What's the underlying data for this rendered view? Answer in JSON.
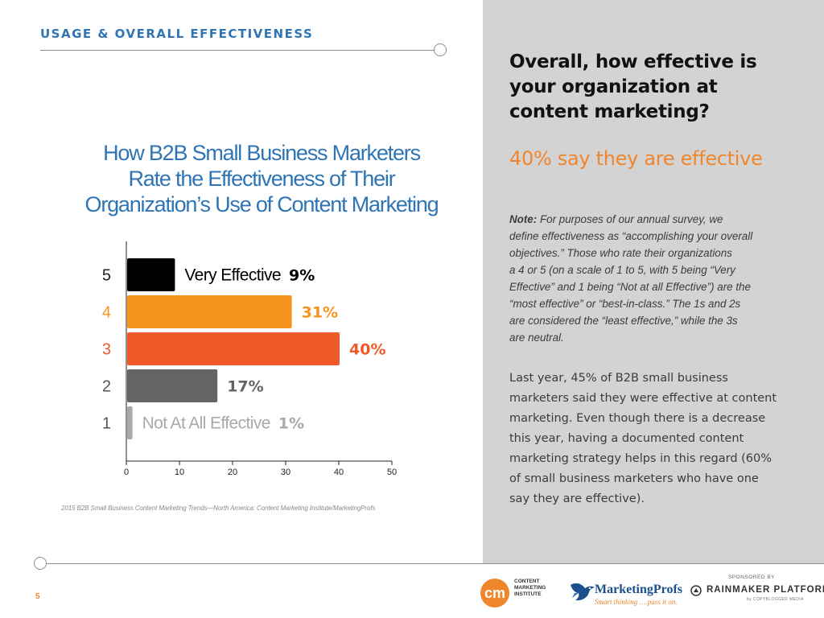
{
  "header": {
    "section_label": "USAGE & OVERALL EFFECTIVENESS"
  },
  "chart_title_lines": [
    "How B2B Small Business Marketers",
    "Rate the Effectiveness of Their",
    "Organization’s Use of Content Marketing"
  ],
  "chart_data": {
    "type": "bar",
    "orientation": "horizontal",
    "title": "How B2B Small Business Marketers Rate the Effectiveness of Their Organization’s Use of Content Marketing",
    "categories": [
      "5",
      "4",
      "3",
      "2",
      "1"
    ],
    "category_labels": [
      "Very Effective",
      "",
      "",
      "",
      "Not At All Effective"
    ],
    "values": [
      9,
      31,
      40,
      17,
      1
    ],
    "value_labels": [
      "9%",
      "31%",
      "40%",
      "17%",
      "1%"
    ],
    "colors": [
      "#000000",
      "#f7941d",
      "#f05a28",
      "#636466",
      "#a7a9ac"
    ],
    "category_label_colors": [
      "#000000",
      "#f7941d",
      "#f05a28",
      "#636466",
      "#a7a9ac"
    ],
    "value_label_colors": [
      "#000000",
      "#f7941d",
      "#f05a28",
      "#636466",
      "#a7a9ac"
    ],
    "xlim": [
      0,
      50
    ],
    "xticks": [
      0,
      10,
      20,
      30,
      40,
      50
    ],
    "xlabel": "",
    "ylabel": "",
    "grid": false
  },
  "source": "2015 B2B Small Business Content Marketing Trends—North America: Content Marketing Institute/MarketingProfs",
  "right_panel": {
    "question_lines": [
      "Overall, how effective is",
      "your organization at",
      "content marketing?"
    ],
    "highlight": "40% say they are effective",
    "note_label": "Note:",
    "note_lines": [
      " For purposes of our annual survey, we",
      "define effectiveness as “accomplishing your overall",
      "objectives.” Those who rate their organizations",
      "a 4 or 5 (on a scale of 1 to 5, with 5 being “Very",
      "Effective” and 1 being “Not at all Effective”) are the",
      "“most effective” or “best-in-class.” The 1s and 2s",
      "are considered the “least effective,” while  the 3s",
      "are neutral."
    ],
    "body_lines": [
      "Last year, 45% of B2B small business",
      "marketers said they were effective at content",
      "marketing. Even though there is a decrease",
      "this year, having a documented content",
      "marketing strategy helps in this regard (60%",
      "of small business marketers who have one",
      "say they are effective)."
    ]
  },
  "footer": {
    "page_number": "5",
    "cmi_badge": "cm",
    "cmi_lines": [
      "CONTENT",
      "MARKETING",
      "INSTITUTE"
    ],
    "mp_name": "MarketingProfs",
    "mp_tagline": "Smart thinking … pass it on.",
    "sponsor_label": "SPONSORED BY",
    "rm_name": "RAINMAKER PLATFORM",
    "rm_sub": "by COPYBLOGGER MEDIA"
  },
  "colors": {
    "accent_blue": "#2f75b5",
    "accent_orange": "#f0862c",
    "panel_gray": "#d3d3d4"
  },
  "icons": [
    "cmi-logo",
    "marketingprofs-bird-icon",
    "rainmaker-icon"
  ]
}
